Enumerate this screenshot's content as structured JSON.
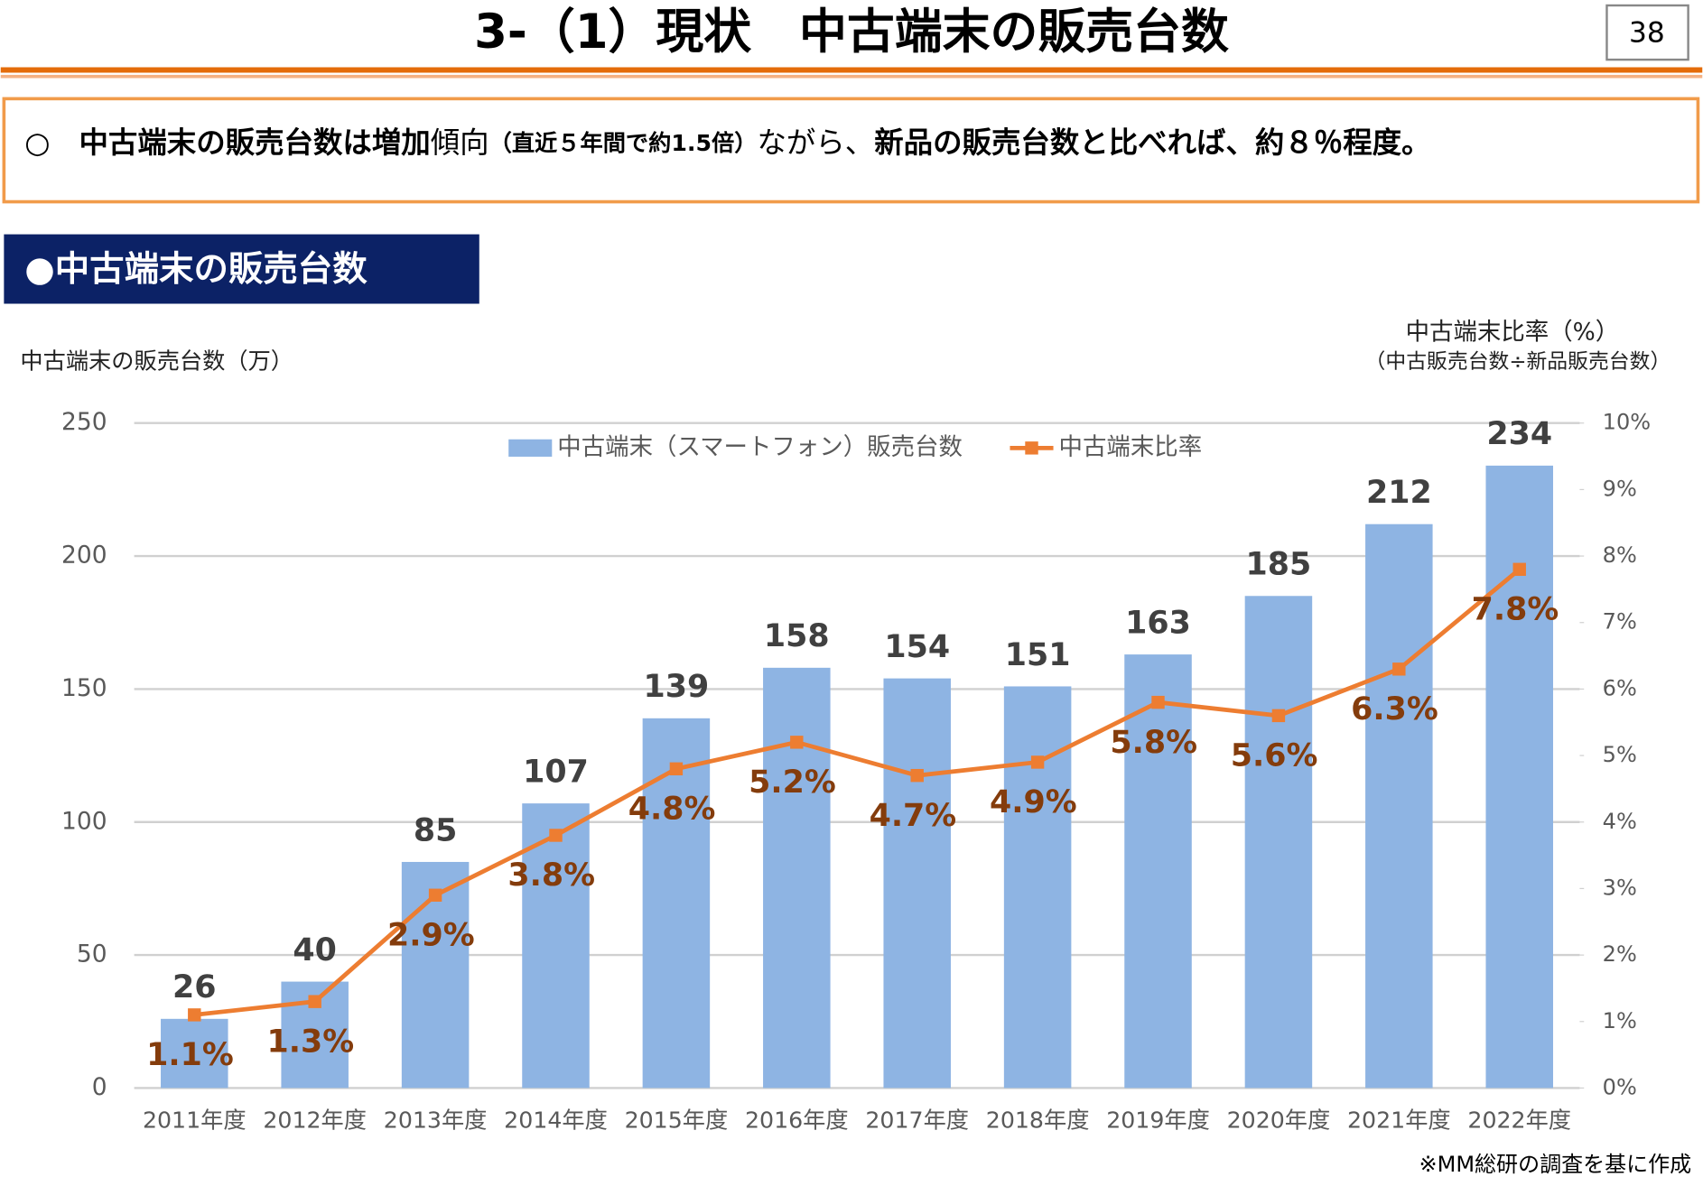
{
  "header": {
    "title": "3-（1）現状　中古端末の販売台数",
    "page": "38"
  },
  "summary": {
    "segments": [
      "○",
      "中古端末の販売台数は増加",
      "傾向",
      "（直近５年間で約1.5倍）",
      "ながら、",
      "新品の販売台数と比べれば、約８％程度。"
    ]
  },
  "section": {
    "title": "●中古端末の販売台数"
  },
  "chart_data": {
    "type": "combo",
    "y_label": "中古端末の販売台数（万）",
    "y2_label": "中古端末比率（%）",
    "y2_sublabel": "（中古販売台数÷新品販売台数）",
    "categories": [
      "2011年度",
      "2012年度",
      "2013年度",
      "2014年度",
      "2015年度",
      "2016年度",
      "2017年度",
      "2018年度",
      "2019年度",
      "2020年度",
      "2021年度",
      "2022年度"
    ],
    "series": [
      {
        "name": "中古端末（スマートフォン）販売台数",
        "type": "bar",
        "color": "#8eb4e3",
        "values": [
          26,
          40,
          85,
          107,
          139,
          158,
          154,
          151,
          163,
          185,
          212,
          234
        ]
      },
      {
        "name": "中古端末比率",
        "type": "line",
        "axis": "y2",
        "color": "#ed7d31",
        "values": [
          1.1,
          1.3,
          2.9,
          3.8,
          4.8,
          5.2,
          4.7,
          4.9,
          5.8,
          5.6,
          6.3,
          7.8
        ],
        "value_labels": [
          "1.1%",
          "1.3%",
          "2.9%",
          "3.8%",
          "4.8%",
          "5.2%",
          "4.7%",
          "4.9%",
          "5.8%",
          "5.6%",
          "6.3%",
          "7.8%"
        ]
      }
    ],
    "ylim": [
      0,
      250
    ],
    "yticks": [
      0,
      50,
      100,
      150,
      200,
      250
    ],
    "y2lim": [
      0,
      10
    ],
    "y2ticks": [
      {
        "value": 0,
        "label": "0%"
      },
      {
        "value": 1,
        "label": "1%"
      },
      {
        "value": 2,
        "label": "2%"
      },
      {
        "value": 3,
        "label": "3%"
      },
      {
        "value": 4,
        "label": "4%"
      },
      {
        "value": 5,
        "label": "5%"
      },
      {
        "value": 6,
        "label": "6%"
      },
      {
        "value": 7,
        "label": "7%"
      },
      {
        "value": 8,
        "label": "8%"
      },
      {
        "value": 9,
        "label": "9%"
      },
      {
        "value": 10,
        "label": "10%"
      }
    ],
    "grid": true,
    "footnote": "※MM総研の調査を基に作成"
  }
}
